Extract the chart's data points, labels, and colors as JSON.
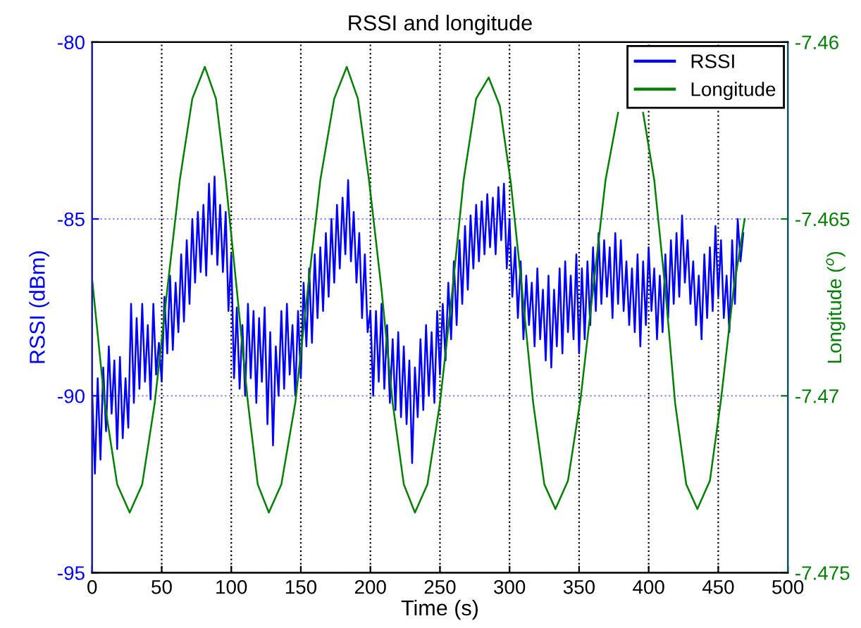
{
  "chart_data": {
    "type": "line",
    "title": "RSSI and longitude",
    "xlabel": "Time (s)",
    "ylabel": "RSSI (dBm)",
    "y2label": "Longitude ($^{o}$)",
    "xlim": [
      0,
      500
    ],
    "xticks": [
      0,
      50,
      100,
      150,
      200,
      250,
      300,
      350,
      400,
      450,
      500
    ],
    "ylim": [
      -95,
      -80
    ],
    "yticks": [
      -95,
      -90,
      -85,
      -80
    ],
    "y2lim": [
      -7.475,
      -7.46
    ],
    "y2ticks": [
      -7.475,
      -7.47,
      -7.465,
      -7.46
    ],
    "grid": true,
    "legend": "top right",
    "line_style": "solid",
    "marker": "none",
    "series": [
      {
        "name": "RSSI",
        "color": "#0000ff",
        "x": [
          0,
          2,
          4,
          6,
          8,
          10,
          12,
          14,
          16,
          18,
          20,
          22,
          24,
          26,
          28,
          30,
          32,
          34,
          36,
          38,
          40,
          42,
          44,
          46,
          48,
          50,
          52,
          54,
          56,
          58,
          60,
          62,
          64,
          66,
          68,
          70,
          72,
          74,
          76,
          78,
          80,
          82,
          84,
          86,
          88,
          90,
          92,
          94,
          96,
          98,
          100,
          102,
          104,
          106,
          108,
          110,
          112,
          114,
          116,
          118,
          120,
          122,
          124,
          126,
          128,
          130,
          132,
          134,
          136,
          138,
          140,
          142,
          144,
          146,
          148,
          150,
          152,
          154,
          156,
          158,
          160,
          162,
          164,
          166,
          168,
          170,
          172,
          174,
          176,
          178,
          180,
          182,
          184,
          186,
          188,
          190,
          192,
          194,
          196,
          198,
          200,
          202,
          204,
          206,
          208,
          210,
          212,
          214,
          216,
          218,
          220,
          222,
          224,
          226,
          228,
          230,
          232,
          234,
          236,
          238,
          240,
          242,
          244,
          246,
          248,
          250,
          252,
          254,
          256,
          258,
          260,
          262,
          264,
          266,
          268,
          270,
          272,
          274,
          276,
          278,
          280,
          282,
          284,
          286,
          288,
          290,
          292,
          294,
          296,
          298,
          300,
          302,
          304,
          306,
          308,
          310,
          312,
          314,
          316,
          318,
          320,
          322,
          324,
          326,
          328,
          330,
          332,
          334,
          336,
          338,
          340,
          342,
          344,
          346,
          348,
          350,
          352,
          354,
          356,
          358,
          360,
          362,
          364,
          366,
          368,
          370,
          372,
          374,
          376,
          378,
          380,
          382,
          384,
          386,
          388,
          390,
          392,
          394,
          396,
          398,
          400,
          402,
          404,
          406,
          408,
          410,
          412,
          414,
          416,
          418,
          420,
          422,
          424,
          426,
          428,
          430,
          432,
          434,
          436,
          438,
          440,
          442,
          444,
          446,
          448,
          450,
          452,
          454,
          456,
          458,
          460,
          462,
          464,
          466,
          468
        ],
        "values": [
          -89.8,
          -92.2,
          -89.5,
          -91.8,
          -89.2,
          -91.0,
          -88.6,
          -90.5,
          -89.0,
          -91.5,
          -88.9,
          -91.2,
          -89.5,
          -90.9,
          -87.4,
          -90.2,
          -87.8,
          -89.8,
          -87.4,
          -89.6,
          -88.0,
          -90.1,
          -87.4,
          -89.4,
          -88.5,
          -89.6,
          -87.2,
          -88.8,
          -86.6,
          -88.7,
          -86.8,
          -88.2,
          -86.0,
          -87.9,
          -85.6,
          -87.4,
          -85.0,
          -86.8,
          -84.8,
          -86.5,
          -84.6,
          -86.6,
          -84.0,
          -86.0,
          -83.8,
          -86.3,
          -84.6,
          -86.5,
          -84.8,
          -87.6,
          -86.0,
          -89.5,
          -87.5,
          -89.8,
          -88.0,
          -90.0,
          -87.4,
          -89.5,
          -87.6,
          -90.2,
          -87.8,
          -89.6,
          -87.5,
          -90.8,
          -88.2,
          -91.4,
          -88.6,
          -90.0,
          -87.6,
          -89.8,
          -87.4,
          -89.4,
          -88.0,
          -90.0,
          -87.6,
          -89.5,
          -86.8,
          -88.6,
          -86.4,
          -88.5,
          -86.0,
          -87.8,
          -85.8,
          -87.6,
          -85.4,
          -87.2,
          -85.0,
          -86.8,
          -84.6,
          -86.4,
          -84.4,
          -86.0,
          -83.9,
          -86.2,
          -84.8,
          -86.8,
          -85.4,
          -87.8,
          -86.0,
          -88.2,
          -87.6,
          -90.0,
          -87.6,
          -89.6,
          -87.4,
          -89.8,
          -88.0,
          -90.2,
          -88.4,
          -90.4,
          -88.2,
          -90.6,
          -88.6,
          -90.8,
          -89.0,
          -91.9,
          -89.2,
          -90.6,
          -88.4,
          -90.4,
          -88.0,
          -90.0,
          -88.2,
          -90.2,
          -87.6,
          -89.4,
          -87.4,
          -89.0,
          -86.8,
          -88.4,
          -86.2,
          -88.0,
          -85.6,
          -87.4,
          -85.2,
          -87.0,
          -84.9,
          -86.4,
          -84.6,
          -86.2,
          -84.5,
          -86.0,
          -84.3,
          -85.8,
          -84.4,
          -86.0,
          -84.1,
          -85.6,
          -84.0,
          -86.4,
          -85.0,
          -87.2,
          -85.8,
          -87.8,
          -86.2,
          -88.4,
          -86.6,
          -88.0,
          -86.8,
          -88.6,
          -86.4,
          -88.4,
          -87.0,
          -89.0,
          -86.6,
          -89.2,
          -87.0,
          -88.6,
          -86.4,
          -88.8,
          -86.2,
          -88.2,
          -86.6,
          -88.4,
          -86.0,
          -88.8,
          -86.4,
          -88.4,
          -86.2,
          -88.0,
          -85.8,
          -87.6,
          -85.4,
          -87.4,
          -85.6,
          -87.2,
          -85.8,
          -87.8,
          -85.4,
          -87.4,
          -85.6,
          -87.6,
          -86.2,
          -88.0,
          -86.4,
          -88.2,
          -86.0,
          -88.6,
          -86.2,
          -88.0,
          -85.8,
          -87.6,
          -86.4,
          -88.4,
          -86.6,
          -88.2,
          -86.0,
          -87.8,
          -85.6,
          -87.4,
          -85.4,
          -87.2,
          -84.9,
          -86.8,
          -85.6,
          -87.4,
          -86.2,
          -88.0,
          -86.6,
          -88.4,
          -86.0,
          -87.8,
          -85.8,
          -87.6,
          -85.2,
          -87.2,
          -85.6,
          -87.8,
          -86.6,
          -88.2,
          -85.6,
          -87.4,
          -85.0,
          -86.2,
          -85.4
        ]
      },
      {
        "name": "Longitude",
        "color": "#008000",
        "axis": "y2",
        "x": [
          0,
          9,
          18,
          27,
          36,
          45,
          54,
          63,
          72,
          81,
          89,
          96,
          104,
          112,
          119,
          127,
          136,
          146,
          155,
          164,
          174,
          183,
          191,
          199,
          208,
          216,
          224,
          232,
          241,
          250,
          259,
          267,
          276,
          285,
          293,
          301,
          309,
          317,
          325,
          333,
          342,
          351,
          360,
          369,
          378,
          388,
          396,
          404,
          412,
          419,
          427,
          435,
          444,
          452,
          461,
          469
        ],
        "values": [
          -7.4667,
          -7.4702,
          -7.4725,
          -7.4733,
          -7.4725,
          -7.4702,
          -7.467,
          -7.4639,
          -7.4616,
          -7.4607,
          -7.4616,
          -7.4639,
          -7.467,
          -7.4702,
          -7.4725,
          -7.4733,
          -7.4725,
          -7.4702,
          -7.467,
          -7.4639,
          -7.4616,
          -7.4607,
          -7.4616,
          -7.4639,
          -7.467,
          -7.4702,
          -7.4725,
          -7.4733,
          -7.4725,
          -7.4702,
          -7.467,
          -7.4639,
          -7.4616,
          -7.461,
          -7.4618,
          -7.464,
          -7.467,
          -7.4702,
          -7.4725,
          -7.4732,
          -7.4724,
          -7.4701,
          -7.467,
          -7.4639,
          -7.462,
          null,
          -7.462,
          -7.4639,
          -7.467,
          -7.4702,
          -7.4725,
          -7.4732,
          -7.4724,
          -7.4701,
          -7.467,
          -7.465
        ]
      }
    ]
  }
}
